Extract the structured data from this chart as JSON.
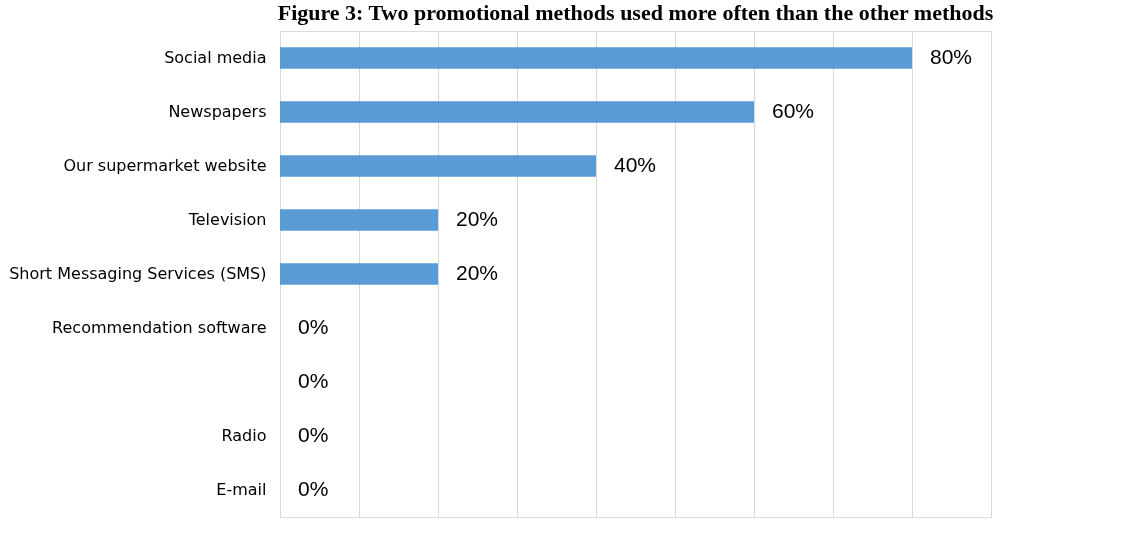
{
  "chart_data": {
    "type": "bar",
    "orientation": "horizontal",
    "title": "Figure 3: Two promotional methods used more often than the other methods",
    "categories": [
      "Social media",
      "Newspapers",
      "Our supermarket website",
      "Television",
      "Short Messaging Services (SMS)",
      "Recommendation software",
      null,
      "Radio",
      "E-mail"
    ],
    "values": [
      80,
      60,
      40,
      20,
      20,
      0,
      0,
      0,
      0
    ],
    "value_labels": [
      "80%",
      "60%",
      "40%",
      "20%",
      "20%",
      "0%",
      "0%",
      "0%",
      "0%"
    ],
    "color": "#5b9bd5",
    "xlim": [
      0,
      90
    ],
    "xticks": [
      {
        "value": 0,
        "label": null
      },
      {
        "value": 10,
        "label": null
      },
      {
        "value": 20,
        "label": null
      },
      {
        "value": 30,
        "label": null
      },
      {
        "value": 40,
        "label": null
      },
      {
        "value": 50,
        "label": null
      },
      {
        "value": 60,
        "label": null
      },
      {
        "value": 70,
        "label": null
      },
      {
        "value": 80,
        "label": null
      },
      {
        "value": 90,
        "label": null
      }
    ],
    "grid": "x",
    "tick_labels": "y"
  }
}
